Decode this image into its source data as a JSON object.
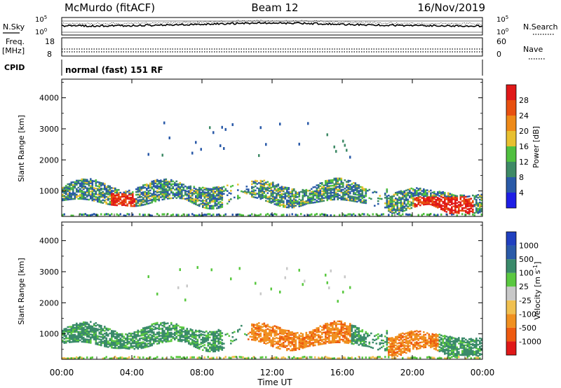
{
  "header": {
    "station": "McMurdo (fitACF)",
    "beam": "Beam 12",
    "date": "16/Nov/2019"
  },
  "noise_panel": {
    "left_label": "N.Sky",
    "right_label": "N.Search",
    "ticks_top": "10^5",
    "ticks_bottom": "10^0"
  },
  "freq_panel": {
    "left_label_line1": "Freq.",
    "left_label_line2": "[MHz]",
    "left_ticks": [
      "18",
      "8"
    ],
    "right_label": "Nave",
    "right_ticks": [
      "60",
      "0"
    ]
  },
  "cpid_panel": {
    "label": "CPID",
    "text": "normal (fast) 151 RF"
  },
  "time_axis": {
    "ticks": [
      "00:00",
      "04:00",
      "08:00",
      "12:00",
      "16:00",
      "20:00",
      "00:00"
    ],
    "label": "Time UT"
  },
  "colors": {
    "power": [
      "#1e1ee6",
      "#2a5aa8",
      "#3e8a66",
      "#50c040",
      "#e8c030",
      "#ee8a18",
      "#e85010",
      "#e01818"
    ],
    "velocity": [
      "#e01818",
      "#ee5a10",
      "#f09020",
      "#f0c050",
      "#c8c8c8",
      "#5ac840",
      "#3a8a6a",
      "#2a5aa8",
      "#2040c0"
    ]
  },
  "chart_data": [
    {
      "type": "heatmap",
      "name": "power",
      "ylabel": "Slant Range [km]",
      "xlabel": "Time UT",
      "x_ticks": [
        "00:00",
        "04:00",
        "08:00",
        "12:00",
        "16:00",
        "20:00",
        "00:00"
      ],
      "y_ticks": [
        1000,
        2000,
        3000,
        4000
      ],
      "ylim": [
        180,
        4600
      ],
      "colorbar": {
        "label": "Power [dB]",
        "ticks": [
          4,
          8,
          12,
          16,
          20,
          24,
          28
        ],
        "range": [
          0,
          32
        ]
      },
      "features": [
        {
          "t": [
            0.0,
            24.0
          ],
          "r": [
            600,
            1300
          ],
          "desc": "main E/F band, strongest near 03:00-04:00 and 20:30-23:00"
        },
        {
          "t": [
            3.0,
            4.0
          ],
          "r": [
            600,
            850
          ],
          "peak_db": 30
        },
        {
          "t": [
            19.5,
            24.0
          ],
          "r": [
            200,
            800
          ],
          "peak_db": 28
        },
        {
          "t": [
            0.0,
            24.0
          ],
          "r": [
            180,
            250
          ],
          "desc": "near-range ground scatter strip"
        },
        {
          "t": [
            5.0,
            14.0
          ],
          "r": [
            2000,
            3000
          ],
          "desc": "sparse far-range scatter"
        }
      ]
    },
    {
      "type": "heatmap",
      "name": "velocity",
      "ylabel": "Slant Range [km]",
      "xlabel": "Time UT",
      "x_ticks": [
        "00:00",
        "04:00",
        "08:00",
        "12:00",
        "16:00",
        "20:00",
        "00:00"
      ],
      "y_ticks": [
        1000,
        2000,
        3000,
        4000
      ],
      "ylim": [
        180,
        4600
      ],
      "colorbar": {
        "label": "Velocity [m s^-1]",
        "ticks": [
          "1000",
          "500",
          "100",
          "25",
          "-25",
          "-100",
          "-500",
          "-1000"
        ]
      },
      "features": [
        {
          "t": [
            0.0,
            9.0
          ],
          "r": [
            600,
            1400
          ],
          "velocity": "100 to 500",
          "desc": "positive (green) band"
        },
        {
          "t": [
            10.5,
            16.5
          ],
          "r": [
            600,
            1500
          ],
          "velocity": "-500 to -100",
          "desc": "negative (orange) patches"
        },
        {
          "t": [
            18.5,
            22.5
          ],
          "r": [
            300,
            1600
          ],
          "velocity": "-500 to -100"
        },
        {
          "t": [
            21.0,
            24.0
          ],
          "r": [
            600,
            1200
          ],
          "velocity": "100 to 500"
        }
      ]
    }
  ]
}
